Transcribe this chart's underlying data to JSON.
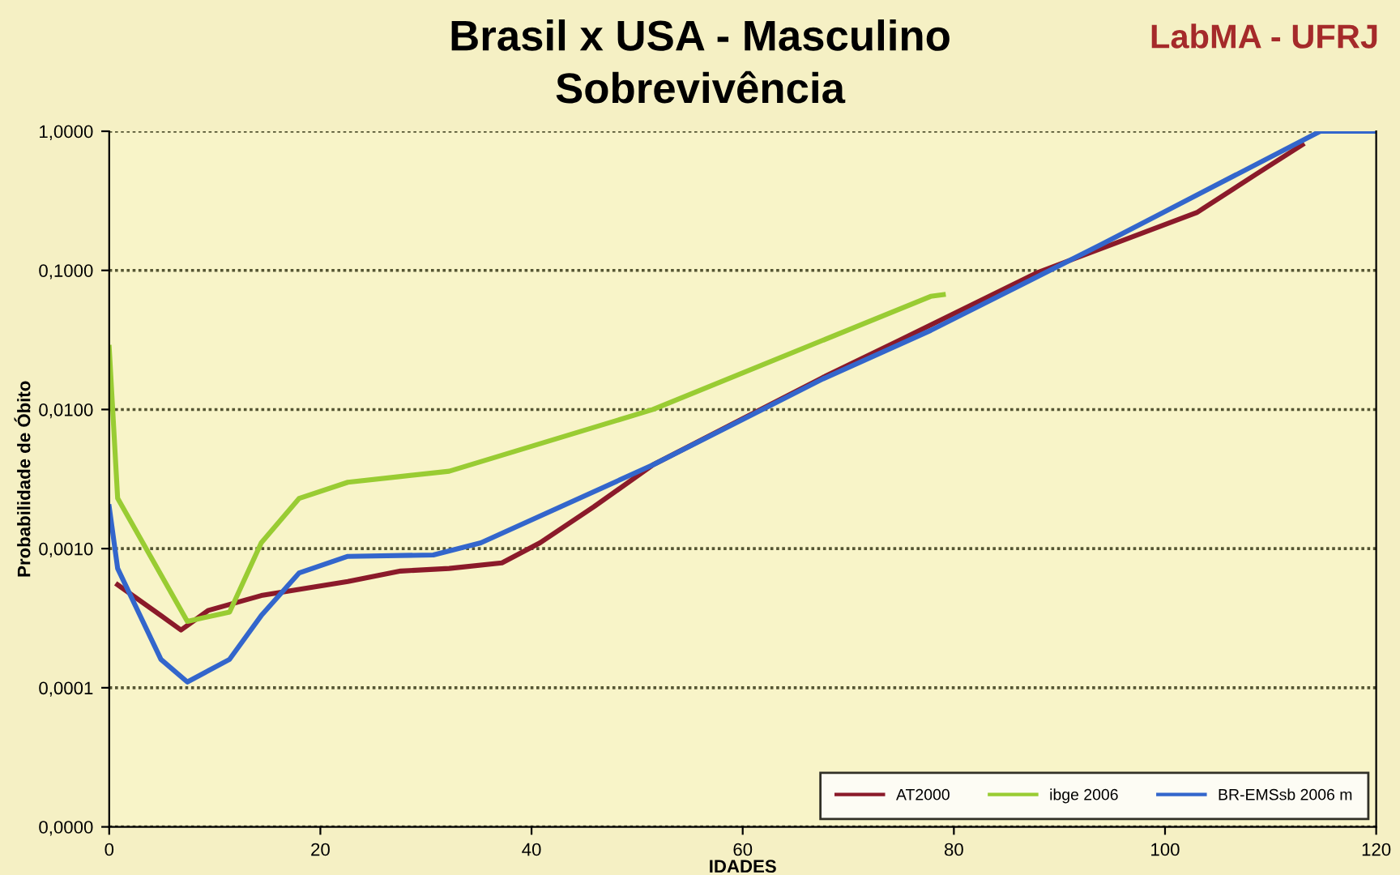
{
  "chart_data": {
    "type": "line",
    "title": "Brasil x USA - Masculino",
    "subtitle": "Sobrevivência",
    "xlabel": "IDADES",
    "ylabel": "Probabilidade de Óbito",
    "annotations": [
      "LabMA - UFRJ"
    ],
    "log": "y",
    "xlim": [
      0,
      120
    ],
    "xticks": [
      0,
      20,
      40,
      60,
      80,
      100,
      120
    ],
    "ylim": [
      1e-05,
      1
    ],
    "yticks": [
      {
        "value": 1e-05,
        "label": "0,0000"
      },
      {
        "value": 0.0001,
        "label": "0,0001"
      },
      {
        "value": 0.001,
        "label": "0,0010"
      },
      {
        "value": 0.01,
        "label": "0,0100"
      },
      {
        "value": 0.1,
        "label": "0,1000"
      },
      {
        "value": 1,
        "label": "1,0000"
      }
    ],
    "grid": "y",
    "legend": "bottom right",
    "line_style": "solid",
    "marker": "none",
    "series": [
      {
        "name": "AT2000",
        "color": "#8b1a2a",
        "x": [
          0.8,
          4.9,
          6.8,
          9.4,
          14.4,
          22.6,
          27.6,
          32.2,
          37.2,
          40.8,
          45.9,
          51.5,
          67.6,
          74.7,
          88,
          103,
          108.6,
          113
        ],
        "values": [
          0.00055,
          0.00033,
          0.00026,
          0.00036,
          0.00046,
          0.00058,
          0.00069,
          0.00072,
          0.00079,
          0.0011,
          0.002,
          0.004,
          0.017,
          0.031,
          0.097,
          0.26,
          0.49,
          0.8
        ]
      },
      {
        "name": "ibge 2006",
        "color": "#99cc33",
        "x": [
          0,
          0.8,
          7.4,
          11.4,
          14.4,
          18,
          22.6,
          27.6,
          32.2,
          51.5,
          77.8,
          79
        ],
        "values": [
          0.028,
          0.0023,
          0.0003,
          0.00035,
          0.0011,
          0.0023,
          0.003,
          0.0033,
          0.0036,
          0.01,
          0.065,
          0.067
        ]
      },
      {
        "name": "BR-EMSsb 2006 m",
        "color": "#3366cc",
        "x": [
          0,
          0.8,
          4.9,
          7.4,
          11.4,
          14.4,
          18,
          22.6,
          30.7,
          35.2,
          51.5,
          67.6,
          77.8,
          94,
          114.7,
          120
        ],
        "values": [
          0.002,
          0.00072,
          0.00016,
          0.00011,
          0.00016,
          0.00033,
          0.00067,
          0.00088,
          0.0009,
          0.0011,
          0.004,
          0.0166,
          0.037,
          0.154,
          1,
          1
        ]
      }
    ]
  }
}
